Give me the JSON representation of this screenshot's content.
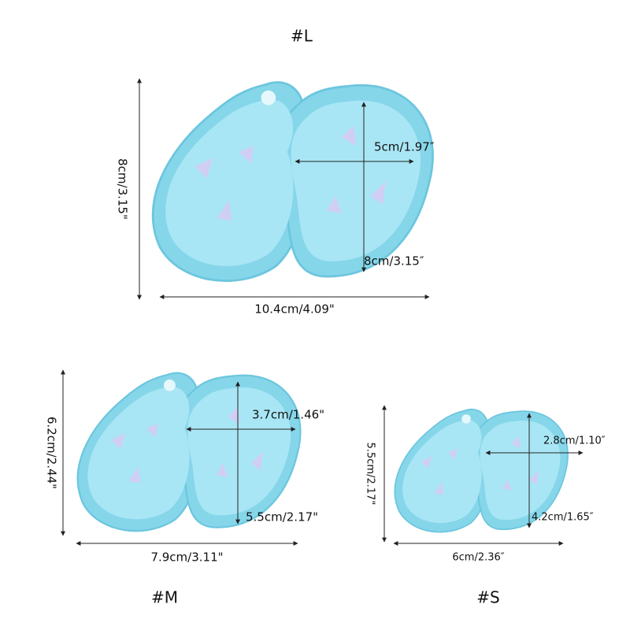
{
  "molds": [
    {
      "label": "#L",
      "width": "10.4cm/4.09\"",
      "height": "8cm/3.15\"",
      "cavity_width": "5cm/1.97″",
      "cavity_height": "8cm/3.15″"
    },
    {
      "label": "#M",
      "width": "7.9cm/3.11\"",
      "height": "6.2cm/2.44\"",
      "cavity_width": "3.7cm/1.46\"",
      "cavity_height": "5.5cm/2.17\""
    },
    {
      "label": "#S",
      "width": "6cm/2.36″",
      "height": "5.5cm/2.17\"",
      "cavity_width": "2.8cm/1.10″",
      "cavity_height": "4.2cm/1.65″"
    }
  ]
}
